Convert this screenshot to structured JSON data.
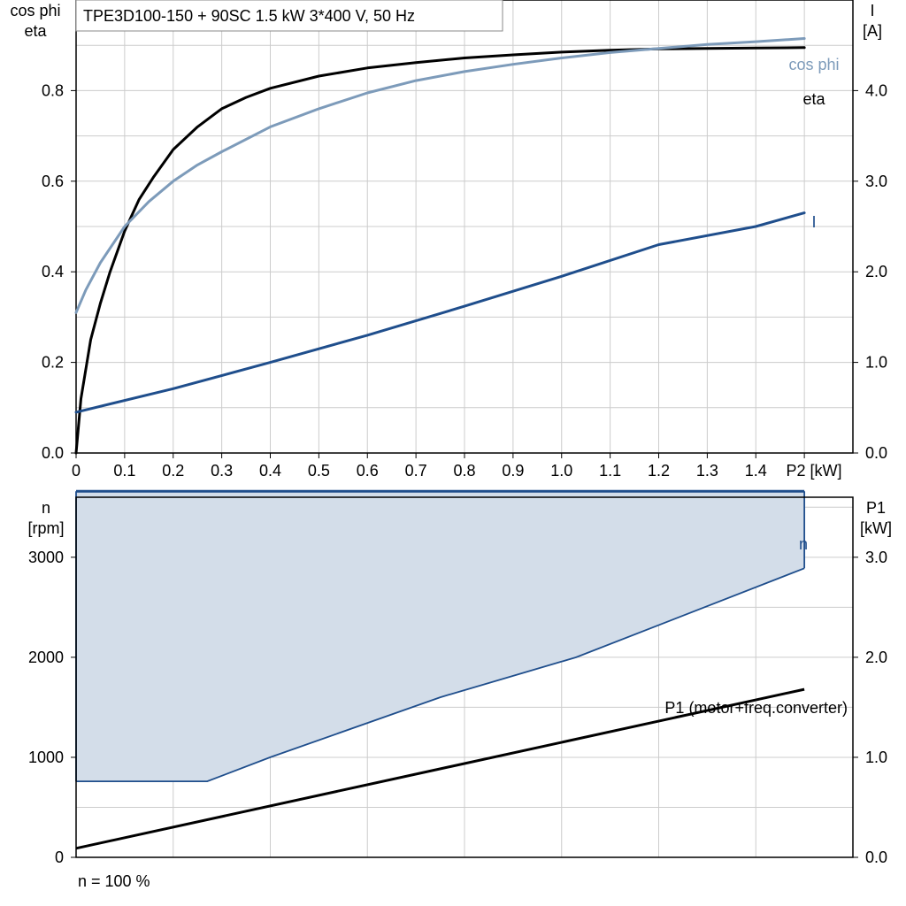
{
  "chart_data": [
    {
      "type": "line",
      "title": "TPE3D100-150 + 90SC   1.5 kW   3*400 V, 50 Hz",
      "xlabel": "P2 [kW]",
      "ylabel_left": [
        "cos phi",
        "eta"
      ],
      "ylabel_right": [
        "I",
        "[A]"
      ],
      "xlim": [
        0,
        1.6
      ],
      "ylim_left": [
        0,
        1.0
      ],
      "ylim_right": [
        0,
        5.0
      ],
      "x_ticks": [
        "0",
        "0.1",
        "0.2",
        "0.3",
        "0.4",
        "0.5",
        "0.6",
        "0.7",
        "0.8",
        "0.9",
        "1.0",
        "1.1",
        "1.2",
        "1.3",
        "1.4"
      ],
      "y_left_ticks": [
        "0.0",
        "0.2",
        "0.4",
        "0.6",
        "0.8"
      ],
      "y_right_ticks": [
        "0.0",
        "1.0",
        "2.0",
        "3.0",
        "4.0"
      ],
      "grid": true,
      "series": [
        {
          "name": "eta",
          "axis": "left",
          "color": "#000000",
          "x": [
            0,
            0.01,
            0.03,
            0.05,
            0.07,
            0.1,
            0.13,
            0.16,
            0.2,
            0.25,
            0.3,
            0.35,
            0.4,
            0.5,
            0.6,
            0.7,
            0.8,
            0.9,
            1.0,
            1.1,
            1.2,
            1.3,
            1.4,
            1.5
          ],
          "values": [
            0,
            0.12,
            0.25,
            0.33,
            0.4,
            0.49,
            0.56,
            0.61,
            0.67,
            0.72,
            0.76,
            0.785,
            0.805,
            0.832,
            0.85,
            0.862,
            0.872,
            0.879,
            0.885,
            0.889,
            0.892,
            0.893,
            0.894,
            0.895
          ]
        },
        {
          "name": "cos phi",
          "axis": "left",
          "color": "#7d9bba",
          "x": [
            0,
            0.02,
            0.05,
            0.1,
            0.15,
            0.2,
            0.25,
            0.3,
            0.4,
            0.5,
            0.6,
            0.7,
            0.8,
            0.9,
            1.0,
            1.1,
            1.2,
            1.3,
            1.4,
            1.5
          ],
          "values": [
            0.31,
            0.36,
            0.42,
            0.5,
            0.555,
            0.6,
            0.636,
            0.665,
            0.72,
            0.76,
            0.795,
            0.822,
            0.842,
            0.858,
            0.872,
            0.884,
            0.893,
            0.902,
            0.908,
            0.915
          ]
        },
        {
          "name": "I",
          "axis": "right",
          "color": "#1f4e8c",
          "x": [
            0,
            0.2,
            0.4,
            0.6,
            0.8,
            1.0,
            1.2,
            1.4,
            1.5
          ],
          "values": [
            0.45,
            0.71,
            1.0,
            1.3,
            1.62,
            1.95,
            2.3,
            2.5,
            2.65
          ]
        }
      ]
    },
    {
      "type": "area",
      "xlabel": "",
      "ylabel_left": [
        "n",
        "[rpm]"
      ],
      "ylabel_right": [
        "P1",
        "[kW]"
      ],
      "xlim": [
        0,
        1.6
      ],
      "ylim_left": [
        0,
        3600
      ],
      "ylim_right": [
        0,
        3.6
      ],
      "y_left_ticks": [
        "0",
        "1000",
        "2000",
        "3000"
      ],
      "y_right_ticks": [
        "0.0",
        "1.0",
        "2.0",
        "3.0"
      ],
      "grid": true,
      "series": [
        {
          "name": "n",
          "axis": "left",
          "color": "#1f4e8c",
          "fill": "#d3dde9",
          "upper_x": [
            0,
            1.5
          ],
          "upper_values": [
            3660,
            3660
          ],
          "lower_x": [
            0,
            0.27,
            0.4,
            0.75,
            1.03,
            1.5
          ],
          "lower_values": [
            760,
            760,
            1000,
            1600,
            2000,
            2890
          ]
        },
        {
          "name": "P1 (motor+freq.converter)",
          "axis": "right",
          "color": "#000000",
          "x": [
            0,
            1.5
          ],
          "values": [
            0.09,
            1.68
          ]
        }
      ],
      "annotation": "n = 100 %"
    }
  ]
}
